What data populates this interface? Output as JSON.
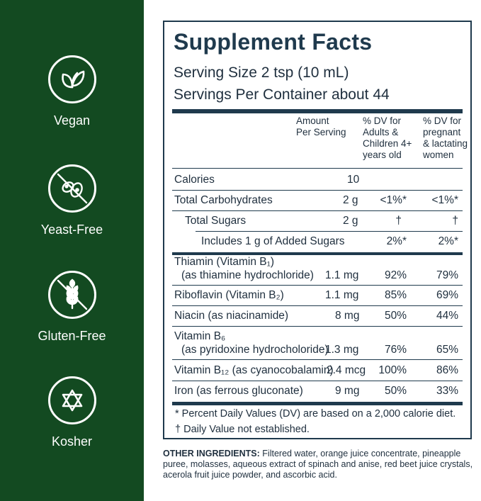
{
  "badges": [
    {
      "icon": "leaf-icon",
      "label": "Vegan"
    },
    {
      "icon": "no-yeast-icon",
      "label": "Yeast-Free"
    },
    {
      "icon": "no-wheat-icon",
      "label": "Gluten-Free"
    },
    {
      "icon": "star-of-david-icon",
      "label": "Kosher"
    }
  ],
  "facts": {
    "title": "Supplement Facts",
    "serving_size": "Serving Size 2 tsp (10 mL)",
    "servings_per_container": "Servings Per Container about 44",
    "col_amount": [
      "Amount",
      "Per Serving"
    ],
    "col_dv1": [
      "% DV for",
      "Adults &",
      "Children 4+",
      "years old"
    ],
    "col_dv2": [
      "% DV for",
      "pregnant",
      "& lactating",
      "women"
    ],
    "rows": [
      {
        "name": "Calories",
        "amount": "10",
        "dv1": "",
        "dv2": ""
      },
      {
        "name": "Total Carbohydrates",
        "amount": "2 g",
        "dv1": "<1%*",
        "dv2": "<1%*"
      },
      {
        "name": "Total Sugars",
        "amount": "2 g",
        "dv1": "†",
        "dv2": "†"
      },
      {
        "name": "Includes 1 g of Added Sugars",
        "amount": "",
        "dv1": "2%*",
        "dv2": "2%*"
      },
      {
        "name": "Thiamin (Vitamin B₁)",
        "name2": "(as thiamine hydrochloride)",
        "amount": "1.1 mg",
        "dv1": "92%",
        "dv2": "79%"
      },
      {
        "name": "Riboflavin (Vitamin B₂)",
        "amount": "1.1 mg",
        "dv1": "85%",
        "dv2": "69%"
      },
      {
        "name": "Niacin (as niacinamide)",
        "amount": "8 mg",
        "dv1": "50%",
        "dv2": "44%"
      },
      {
        "name": "Vitamin B₆",
        "name2": "(as pyridoxine hydrocholoride)",
        "amount": "1.3 mg",
        "dv1": "76%",
        "dv2": "65%"
      },
      {
        "name": "Vitamin B₁₂ (as cyanocobalamin)",
        "amount": "2.4 mcg",
        "dv1": "100%",
        "dv2": "86%"
      },
      {
        "name": "Iron (as ferrous gluconate)",
        "amount": "9 mg",
        "dv1": "50%",
        "dv2": "33%"
      }
    ],
    "footnote1": "* Percent Daily Values (DV) are based on a 2,000 calorie diet.",
    "footnote2": "† Daily Value not established."
  },
  "other_ingredients": {
    "label": "OTHER INGREDIENTS:",
    "text": " Filtered water, orange juice concentrate, pineapple puree, molasses, aqueous extract of spinach and anise, red beet juice crystals, acerola fruit juice powder, and ascorbic acid."
  },
  "colors": {
    "sidebar": "#134a21",
    "ink": "#1f3a4d"
  }
}
